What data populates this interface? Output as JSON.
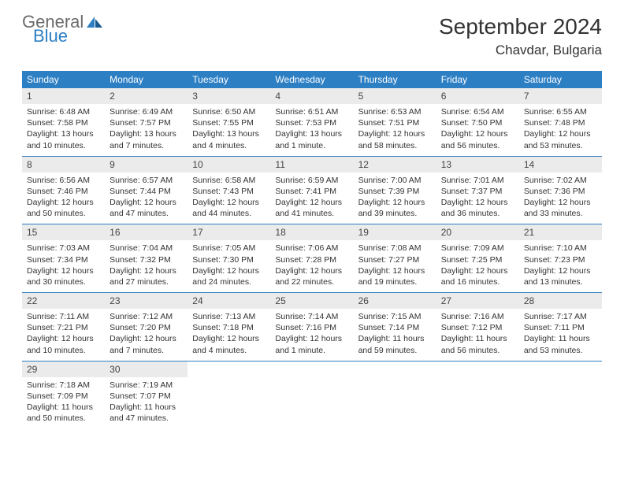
{
  "logo": {
    "text1": "General",
    "text2": "Blue"
  },
  "title": "September 2024",
  "location": "Chavdar, Bulgaria",
  "colors": {
    "headerBg": "#2d7fc4",
    "headerText": "#ffffff",
    "dayNumBg": "#ebebeb",
    "dayNumText": "#444444",
    "bodyText": "#333333",
    "border": "#2d7fc4",
    "logoGray": "#6b6b6b",
    "logoBlue": "#2d7fc4"
  },
  "dayNames": [
    "Sunday",
    "Monday",
    "Tuesday",
    "Wednesday",
    "Thursday",
    "Friday",
    "Saturday"
  ],
  "days": [
    {
      "n": "1",
      "sunrise": "6:48 AM",
      "sunset": "7:58 PM",
      "daylight": "13 hours and 10 minutes."
    },
    {
      "n": "2",
      "sunrise": "6:49 AM",
      "sunset": "7:57 PM",
      "daylight": "13 hours and 7 minutes."
    },
    {
      "n": "3",
      "sunrise": "6:50 AM",
      "sunset": "7:55 PM",
      "daylight": "13 hours and 4 minutes."
    },
    {
      "n": "4",
      "sunrise": "6:51 AM",
      "sunset": "7:53 PM",
      "daylight": "13 hours and 1 minute."
    },
    {
      "n": "5",
      "sunrise": "6:53 AM",
      "sunset": "7:51 PM",
      "daylight": "12 hours and 58 minutes."
    },
    {
      "n": "6",
      "sunrise": "6:54 AM",
      "sunset": "7:50 PM",
      "daylight": "12 hours and 56 minutes."
    },
    {
      "n": "7",
      "sunrise": "6:55 AM",
      "sunset": "7:48 PM",
      "daylight": "12 hours and 53 minutes."
    },
    {
      "n": "8",
      "sunrise": "6:56 AM",
      "sunset": "7:46 PM",
      "daylight": "12 hours and 50 minutes."
    },
    {
      "n": "9",
      "sunrise": "6:57 AM",
      "sunset": "7:44 PM",
      "daylight": "12 hours and 47 minutes."
    },
    {
      "n": "10",
      "sunrise": "6:58 AM",
      "sunset": "7:43 PM",
      "daylight": "12 hours and 44 minutes."
    },
    {
      "n": "11",
      "sunrise": "6:59 AM",
      "sunset": "7:41 PM",
      "daylight": "12 hours and 41 minutes."
    },
    {
      "n": "12",
      "sunrise": "7:00 AM",
      "sunset": "7:39 PM",
      "daylight": "12 hours and 39 minutes."
    },
    {
      "n": "13",
      "sunrise": "7:01 AM",
      "sunset": "7:37 PM",
      "daylight": "12 hours and 36 minutes."
    },
    {
      "n": "14",
      "sunrise": "7:02 AM",
      "sunset": "7:36 PM",
      "daylight": "12 hours and 33 minutes."
    },
    {
      "n": "15",
      "sunrise": "7:03 AM",
      "sunset": "7:34 PM",
      "daylight": "12 hours and 30 minutes."
    },
    {
      "n": "16",
      "sunrise": "7:04 AM",
      "sunset": "7:32 PM",
      "daylight": "12 hours and 27 minutes."
    },
    {
      "n": "17",
      "sunrise": "7:05 AM",
      "sunset": "7:30 PM",
      "daylight": "12 hours and 24 minutes."
    },
    {
      "n": "18",
      "sunrise": "7:06 AM",
      "sunset": "7:28 PM",
      "daylight": "12 hours and 22 minutes."
    },
    {
      "n": "19",
      "sunrise": "7:08 AM",
      "sunset": "7:27 PM",
      "daylight": "12 hours and 19 minutes."
    },
    {
      "n": "20",
      "sunrise": "7:09 AM",
      "sunset": "7:25 PM",
      "daylight": "12 hours and 16 minutes."
    },
    {
      "n": "21",
      "sunrise": "7:10 AM",
      "sunset": "7:23 PM",
      "daylight": "12 hours and 13 minutes."
    },
    {
      "n": "22",
      "sunrise": "7:11 AM",
      "sunset": "7:21 PM",
      "daylight": "12 hours and 10 minutes."
    },
    {
      "n": "23",
      "sunrise": "7:12 AM",
      "sunset": "7:20 PM",
      "daylight": "12 hours and 7 minutes."
    },
    {
      "n": "24",
      "sunrise": "7:13 AM",
      "sunset": "7:18 PM",
      "daylight": "12 hours and 4 minutes."
    },
    {
      "n": "25",
      "sunrise": "7:14 AM",
      "sunset": "7:16 PM",
      "daylight": "12 hours and 1 minute."
    },
    {
      "n": "26",
      "sunrise": "7:15 AM",
      "sunset": "7:14 PM",
      "daylight": "11 hours and 59 minutes."
    },
    {
      "n": "27",
      "sunrise": "7:16 AM",
      "sunset": "7:12 PM",
      "daylight": "11 hours and 56 minutes."
    },
    {
      "n": "28",
      "sunrise": "7:17 AM",
      "sunset": "7:11 PM",
      "daylight": "11 hours and 53 minutes."
    },
    {
      "n": "29",
      "sunrise": "7:18 AM",
      "sunset": "7:09 PM",
      "daylight": "11 hours and 50 minutes."
    },
    {
      "n": "30",
      "sunrise": "7:19 AM",
      "sunset": "7:07 PM",
      "daylight": "11 hours and 47 minutes."
    }
  ],
  "labels": {
    "sunrise": "Sunrise:",
    "sunset": "Sunset:",
    "daylight": "Daylight:"
  },
  "layout": {
    "startOffset": 0,
    "weeks": 5,
    "cols": 7
  }
}
